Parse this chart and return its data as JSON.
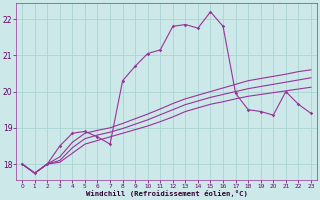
{
  "xlabel": "Windchill (Refroidissement éolien,°C)",
  "bg_color": "#cce8e8",
  "line_color": "#993399",
  "grid_color": "#aad4d4",
  "xlim": [
    -0.5,
    23.5
  ],
  "ylim": [
    17.55,
    22.45
  ],
  "xtick_vals": [
    0,
    1,
    2,
    3,
    4,
    5,
    6,
    7,
    8,
    9,
    10,
    11,
    12,
    13,
    14,
    15,
    16,
    17,
    18,
    19,
    20,
    21,
    22,
    23
  ],
  "ytick_vals": [
    18,
    19,
    20,
    21,
    22
  ],
  "series_peak1": [
    18.0,
    17.75,
    18.0,
    18.5,
    18.85,
    18.9,
    18.75,
    18.55,
    20.3,
    20.7,
    21.05,
    21.15,
    21.8,
    21.85,
    21.75,
    22.2,
    21.8,
    19.95,
    19.5,
    19.45,
    19.35,
    20.0,
    19.65,
    19.4
  ],
  "series_flat1": [
    18.0,
    17.75,
    18.0,
    18.05,
    18.3,
    18.55,
    18.65,
    18.75,
    18.85,
    18.95,
    19.05,
    19.17,
    19.3,
    19.45,
    19.55,
    19.65,
    19.72,
    19.8,
    19.87,
    19.92,
    19.97,
    20.02,
    20.07,
    20.12
  ],
  "series_flat2": [
    18.0,
    17.75,
    18.0,
    18.1,
    18.45,
    18.7,
    18.8,
    18.88,
    18.98,
    19.1,
    19.22,
    19.36,
    19.5,
    19.64,
    19.74,
    19.84,
    19.92,
    20.0,
    20.08,
    20.14,
    20.2,
    20.26,
    20.32,
    20.38
  ],
  "series_flat3": [
    18.0,
    17.75,
    18.0,
    18.2,
    18.6,
    18.85,
    18.93,
    19.0,
    19.12,
    19.25,
    19.38,
    19.52,
    19.67,
    19.8,
    19.9,
    20.0,
    20.1,
    20.2,
    20.3,
    20.36,
    20.42,
    20.48,
    20.55,
    20.6
  ]
}
